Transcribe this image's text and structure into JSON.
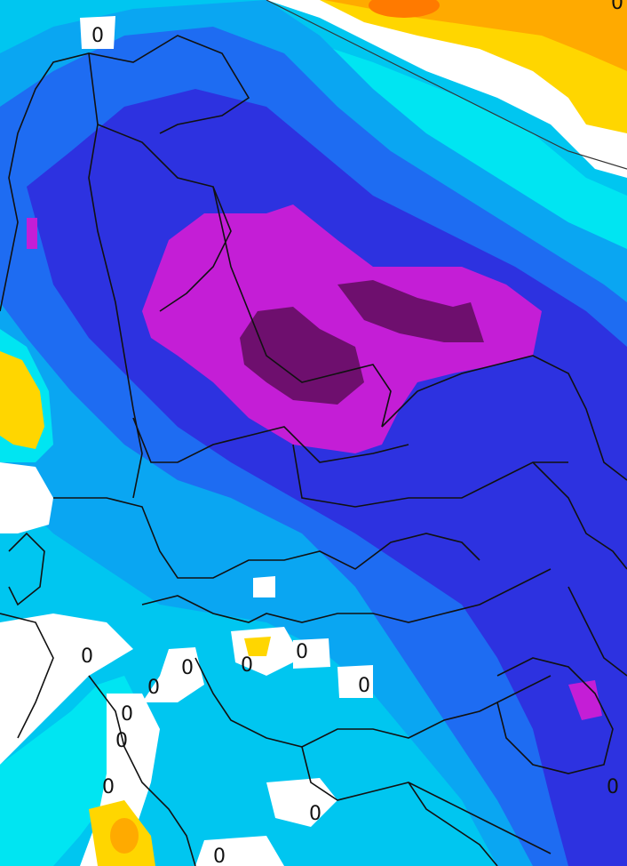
{
  "map": {
    "palette": {
      "background_white": "#ffffff",
      "cyan_light": "#00e5f2",
      "cyan": "#00c6f0",
      "sky_blue": "#0aa6f2",
      "blue": "#1e6cf2",
      "deep_blue": "#2d32e0",
      "magenta": "#c41ed6",
      "dark_purple": "#6e0f6e",
      "yellow": "#ffd600",
      "orange": "#ffaa00",
      "dark_orange": "#ff7a00",
      "borders": "#111111"
    },
    "contour_labels": [
      {
        "id": "label-top-scandinavia",
        "text": "0"
      },
      {
        "id": "label-w-balkans-1",
        "text": "0"
      },
      {
        "id": "label-w-balkans-2",
        "text": "0"
      },
      {
        "id": "label-adriatic-1",
        "text": "0"
      },
      {
        "id": "label-adriatic-2",
        "text": "0"
      },
      {
        "id": "label-alps-1",
        "text": "0"
      },
      {
        "id": "label-alps-2",
        "text": "0"
      },
      {
        "id": "label-hungary",
        "text": "0"
      },
      {
        "id": "label-carpathians",
        "text": "0"
      },
      {
        "id": "label-romania",
        "text": "0"
      },
      {
        "id": "label-italy-1",
        "text": "0"
      },
      {
        "id": "label-italy-2",
        "text": "0"
      },
      {
        "id": "label-south-edge",
        "text": "0"
      },
      {
        "id": "label-east-edge",
        "text": "0"
      }
    ]
  }
}
